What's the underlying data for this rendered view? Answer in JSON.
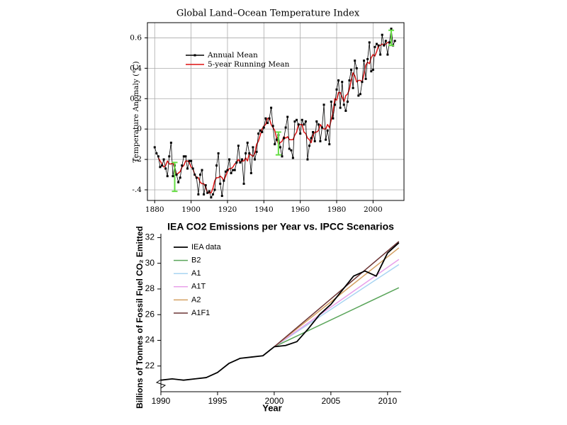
{
  "chart_data": [
    {
      "type": "line",
      "title": "Global Land–Ocean Temperature Index",
      "ylabel": "Temperature Anomaly (°C)",
      "x": [
        1880,
        1881,
        1882,
        1883,
        1884,
        1885,
        1886,
        1887,
        1888,
        1889,
        1890,
        1891,
        1892,
        1893,
        1894,
        1895,
        1896,
        1897,
        1898,
        1899,
        1900,
        1901,
        1902,
        1903,
        1904,
        1905,
        1906,
        1907,
        1908,
        1909,
        1910,
        1911,
        1912,
        1913,
        1914,
        1915,
        1916,
        1917,
        1918,
        1919,
        1920,
        1921,
        1922,
        1923,
        1924,
        1925,
        1926,
        1927,
        1928,
        1929,
        1930,
        1931,
        1932,
        1933,
        1934,
        1935,
        1936,
        1937,
        1938,
        1939,
        1940,
        1941,
        1942,
        1943,
        1944,
        1945,
        1946,
        1947,
        1948,
        1949,
        1950,
        1951,
        1952,
        1953,
        1954,
        1955,
        1956,
        1957,
        1958,
        1959,
        1960,
        1961,
        1962,
        1963,
        1964,
        1965,
        1966,
        1967,
        1968,
        1969,
        1970,
        1971,
        1972,
        1973,
        1974,
        1975,
        1976,
        1977,
        1978,
        1979,
        1980,
        1981,
        1982,
        1983,
        1984,
        1985,
        1986,
        1987,
        1988,
        1989,
        1990,
        1991,
        1992,
        1993,
        1994,
        1995,
        1996,
        1997,
        1998,
        1999,
        2000,
        2001,
        2002,
        2003,
        2004,
        2005,
        2006,
        2007,
        2008,
        2009,
        2010,
        2011,
        2012
      ],
      "series": [
        {
          "name": "Annual Mean",
          "color": "#000000",
          "marker": "square",
          "values": [
            -0.12,
            -0.16,
            -0.18,
            -0.25,
            -0.24,
            -0.2,
            -0.26,
            -0.31,
            -0.18,
            -0.09,
            -0.31,
            -0.24,
            -0.3,
            -0.35,
            -0.32,
            -0.24,
            -0.18,
            -0.18,
            -0.26,
            -0.21,
            -0.21,
            -0.26,
            -0.3,
            -0.32,
            -0.43,
            -0.3,
            -0.27,
            -0.43,
            -0.37,
            -0.42,
            -0.41,
            -0.45,
            -0.43,
            -0.4,
            -0.24,
            -0.16,
            -0.36,
            -0.44,
            -0.34,
            -0.28,
            -0.27,
            -0.2,
            -0.29,
            -0.27,
            -0.27,
            -0.22,
            -0.11,
            -0.22,
            -0.2,
            -0.36,
            -0.16,
            -0.09,
            -0.16,
            -0.29,
            -0.12,
            -0.2,
            -0.15,
            -0.03,
            -0.01,
            -0.02,
            0.01,
            0.07,
            0.04,
            0.07,
            0.14,
            0.02,
            -0.1,
            -0.07,
            -0.04,
            -0.12,
            -0.18,
            -0.06,
            0.01,
            0.08,
            -0.13,
            -0.14,
            -0.19,
            0.05,
            0.06,
            0.03,
            -0.03,
            0.06,
            0.03,
            0.05,
            -0.2,
            -0.11,
            -0.06,
            -0.02,
            -0.08,
            0.05,
            0.03,
            -0.08,
            0.01,
            0.16,
            -0.07,
            -0.01,
            -0.1,
            0.18,
            0.07,
            0.16,
            0.26,
            0.32,
            0.14,
            0.31,
            0.16,
            0.12,
            0.18,
            0.32,
            0.39,
            0.27,
            0.45,
            0.4,
            0.22,
            0.23,
            0.31,
            0.45,
            0.33,
            0.46,
            0.57,
            0.38,
            0.39,
            0.54,
            0.56,
            0.55,
            0.49,
            0.62,
            0.55,
            0.58,
            0.49,
            0.57,
            0.66,
            0.55,
            0.58
          ]
        },
        {
          "name": "5-year Running Mean",
          "color": "#dd1111",
          "values": [
            null,
            null,
            -0.19,
            -0.21,
            -0.23,
            -0.25,
            -0.24,
            -0.21,
            -0.23,
            -0.23,
            -0.22,
            -0.26,
            -0.3,
            -0.29,
            -0.28,
            -0.25,
            -0.24,
            -0.21,
            -0.21,
            -0.22,
            -0.25,
            -0.26,
            -0.3,
            -0.32,
            -0.32,
            -0.35,
            -0.36,
            -0.36,
            -0.38,
            -0.42,
            -0.42,
            -0.42,
            -0.39,
            -0.34,
            -0.32,
            -0.32,
            -0.31,
            -0.32,
            -0.34,
            -0.31,
            -0.28,
            -0.26,
            -0.26,
            -0.25,
            -0.23,
            -0.22,
            -0.2,
            -0.22,
            -0.21,
            -0.21,
            -0.19,
            -0.21,
            -0.16,
            -0.17,
            -0.18,
            -0.16,
            -0.1,
            -0.08,
            -0.04,
            0.0,
            0.02,
            0.03,
            0.07,
            0.07,
            0.03,
            0.01,
            -0.01,
            -0.06,
            -0.1,
            -0.09,
            -0.08,
            -0.05,
            -0.06,
            -0.05,
            -0.07,
            -0.07,
            -0.07,
            -0.04,
            -0.02,
            0.03,
            0.03,
            0.03,
            -0.02,
            -0.03,
            -0.06,
            -0.07,
            -0.09,
            -0.04,
            -0.02,
            -0.02,
            -0.01,
            0.03,
            0.01,
            0.0,
            0.0,
            0.03,
            0.01,
            0.06,
            0.11,
            0.2,
            0.19,
            0.24,
            0.24,
            0.21,
            0.18,
            0.22,
            0.23,
            0.26,
            0.32,
            0.37,
            0.35,
            0.31,
            0.32,
            0.32,
            0.31,
            0.36,
            0.42,
            0.44,
            0.43,
            0.47,
            0.49,
            0.48,
            0.51,
            0.55,
            0.55,
            0.56,
            0.55,
            0.56,
            0.57,
            0.57,
            0.57,
            null,
            null
          ]
        }
      ],
      "error_bars": [
        {
          "x": 1891,
          "low": -0.41,
          "high": -0.22
        },
        {
          "x": 1948,
          "low": -0.17,
          "high": -0.02
        },
        {
          "x": 2010,
          "low": 0.55,
          "high": 0.65
        }
      ],
      "error_color": "#66dd44",
      "xlim": [
        1876,
        2017
      ],
      "xticks": [
        1880,
        1900,
        1920,
        1940,
        1960,
        1980,
        2000
      ],
      "ylim": [
        -0.47,
        0.7
      ],
      "yticks": [
        {
          "value": -0.4,
          "label": "-.4"
        },
        {
          "value": -0.2,
          "label": "-.2"
        },
        0,
        0.2,
        0.4,
        0.6
      ],
      "grid": true,
      "frame": true,
      "legend": "upper left"
    },
    {
      "type": "line",
      "title": "IEA CO2 Emissions per Year vs. IPCC Scenarios",
      "xlabel": "Year",
      "ylabel": "Billions of Tonnes of Fossil Fuel CO₂ Emitted",
      "x": [
        1990,
        1991,
        1992,
        1993,
        1994,
        1995,
        1996,
        1997,
        1998,
        1999,
        2000,
        2001,
        2002,
        2003,
        2004,
        2005,
        2006,
        2007,
        2008,
        2009,
        2010,
        2011
      ],
      "series": [
        {
          "name": "IEA data",
          "color": "#000000",
          "width": 1.8,
          "values": [
            20.9,
            21.0,
            20.9,
            21.0,
            21.1,
            21.5,
            22.2,
            22.6,
            22.7,
            22.8,
            23.5,
            23.6,
            23.9,
            24.9,
            26.0,
            26.8,
            27.9,
            29.0,
            29.4,
            29.0,
            30.8,
            31.6
          ]
        },
        {
          "name": "B2",
          "color": "#5aa55a",
          "x": [
            2000,
            2011
          ],
          "values": [
            23.5,
            28.1
          ]
        },
        {
          "name": "A1",
          "color": "#a8d4f2",
          "x": [
            2000,
            2011
          ],
          "values": [
            23.5,
            29.9
          ]
        },
        {
          "name": "A1T",
          "color": "#e8a0ea",
          "x": [
            2000,
            2011
          ],
          "values": [
            23.5,
            30.3
          ]
        },
        {
          "name": "A2",
          "color": "#d4a062",
          "x": [
            2000,
            2011
          ],
          "values": [
            23.5,
            31.2
          ]
        },
        {
          "name": "A1F1",
          "color": "#6b3434",
          "x": [
            2000,
            2011
          ],
          "values": [
            23.5,
            31.7
          ]
        }
      ],
      "xlim": [
        1990,
        2011.2
      ],
      "xticks": [
        1990,
        1995,
        2000,
        2005,
        2010
      ],
      "ylim": [
        20,
        32.3
      ],
      "yticks": [
        22,
        24,
        26,
        28,
        30,
        32
      ],
      "grid": false,
      "frame": false,
      "legend": "upper left"
    }
  ]
}
